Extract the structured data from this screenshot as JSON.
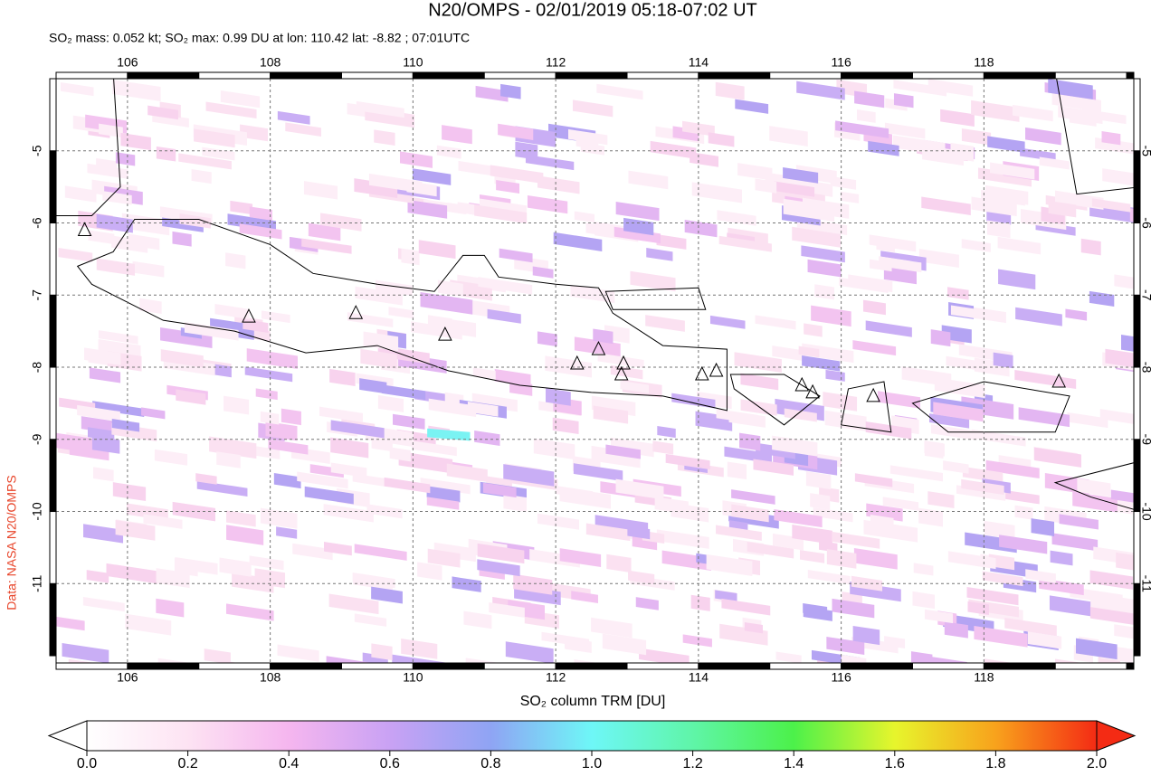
{
  "title": "N20/OMPS - 02/01/2019 05:18-07:02 UT",
  "subtitle": "SO₂ mass: 0.052 kt; SO₂ max: 0.99 DU at lon: 110.42 lat: -8.82 ; 07:01UTC",
  "credit": "Data: NASA N20/OMPS",
  "map": {
    "xlim": [
      105,
      120.1
    ],
    "ylim": [
      -12.1,
      -4
    ],
    "xticks": [
      106,
      108,
      110,
      112,
      114,
      116,
      118
    ],
    "yticks": [
      -5,
      -6,
      -7,
      -8,
      -9,
      -10,
      -11
    ]
  },
  "colorbar": {
    "label": "SO₂ column TRM [DU]",
    "range": [
      0,
      2
    ],
    "ticks": [
      {
        "value": 0,
        "label": "0.0"
      },
      {
        "value": 0.2,
        "label": "0.2"
      },
      {
        "value": 0.4,
        "label": "0.4"
      },
      {
        "value": 0.6,
        "label": "0.6"
      },
      {
        "value": 0.8,
        "label": "0.8"
      },
      {
        "value": 1,
        "label": "1.0"
      },
      {
        "value": 1.2,
        "label": "1.2"
      },
      {
        "value": 1.4,
        "label": "1.4"
      },
      {
        "value": 1.6,
        "label": "1.6"
      },
      {
        "value": 1.8,
        "label": "1.8"
      },
      {
        "value": 2,
        "label": "2.0"
      }
    ]
  }
}
